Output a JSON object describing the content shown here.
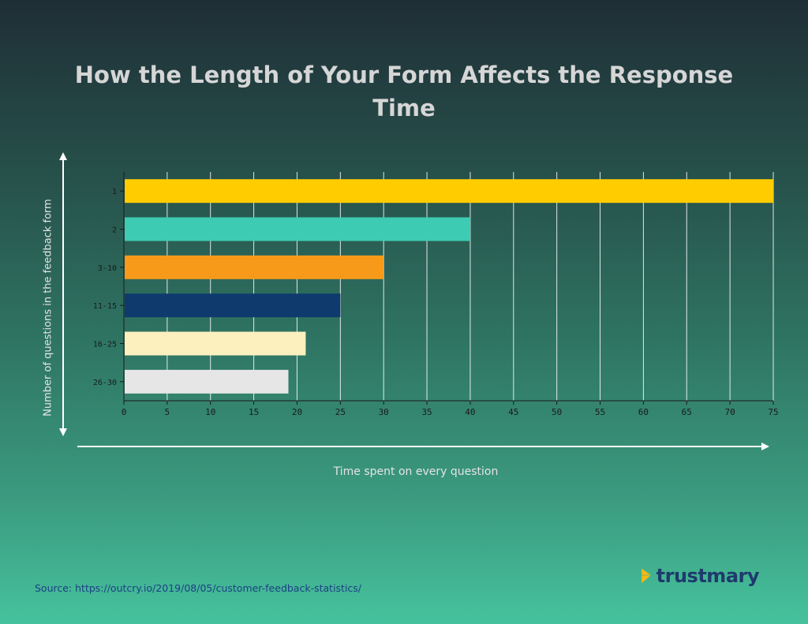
{
  "title_lines": [
    "How the Length of Your Form Affects the Response",
    "Time"
  ],
  "source": "Source: https://outcry.io/2019/08/05/customer-feedback-statistics/",
  "brand": {
    "name": "trustmary",
    "icon": "trustmary-logo-icon",
    "icon_color": "#f7b913"
  },
  "chart_data": {
    "type": "bar",
    "orientation": "horizontal",
    "title": "How the Length of Your Form Affects the Response Time",
    "xlabel": "Time spent on every question",
    "ylabel": "Number of questions in the feedback form",
    "categories": [
      "1",
      "2",
      "3-10",
      "11-15",
      "16-25",
      "26-30"
    ],
    "values": [
      75,
      40,
      30,
      25,
      21,
      19
    ],
    "colors": [
      "#ffcc00",
      "#3ecbb3",
      "#f79a1a",
      "#0f3a6e",
      "#fdf0bf",
      "#e6e6e6"
    ],
    "xlim": [
      0,
      75
    ],
    "xticks": [
      0,
      5,
      10,
      15,
      20,
      25,
      30,
      35,
      40,
      45,
      50,
      55,
      60,
      65,
      70,
      75
    ],
    "grid": true,
    "legend": "none"
  }
}
